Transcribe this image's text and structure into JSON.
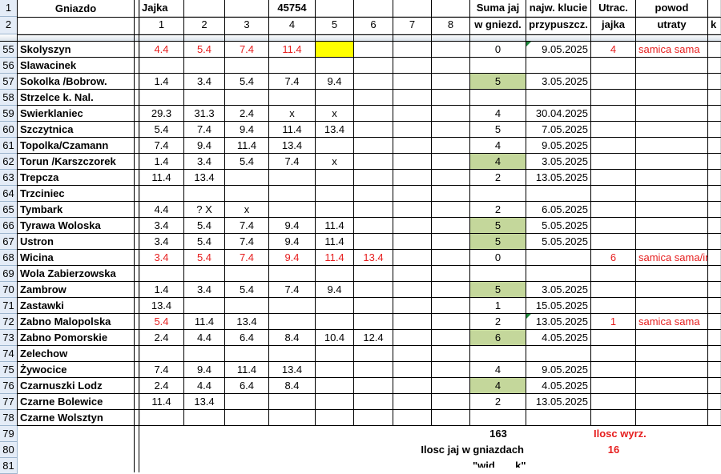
{
  "header": {
    "row1": {
      "gniazdo": "Gniazdo",
      "jajka": "Jajka",
      "date_value": "45754",
      "suma": "Suma jaj",
      "najw": "najw. klucie",
      "utrac": "Utrac.",
      "powod": "powod"
    },
    "row2": {
      "cols": [
        "1",
        "2",
        "3",
        "4",
        "5",
        "6",
        "7",
        "8"
      ],
      "suma": "w gniezd.",
      "najw": "przypuszcz.",
      "utrac": "jajka",
      "powod": "utraty",
      "trailing": "k"
    }
  },
  "rows": [
    {
      "num": "55",
      "name": "Skolyszyn",
      "eggs": [
        "4.4",
        "5.4",
        "7.4",
        "11.4",
        "",
        "",
        "",
        ""
      ],
      "sum": "0",
      "date": "9.05.2025",
      "lost": "4",
      "reason": "samica sama",
      "red": true,
      "yellow5": true,
      "tri": true
    },
    {
      "num": "56",
      "name": "Slawacinek",
      "eggs": [
        "",
        "",
        "",
        "",
        "",
        "",
        "",
        ""
      ],
      "sum": "",
      "date": "",
      "lost": "",
      "reason": ""
    },
    {
      "num": "57",
      "name": "Sokolka /Bobrow.",
      "eggs": [
        "1.4",
        "3.4",
        "5.4",
        "7.4",
        "9.4",
        "",
        "",
        ""
      ],
      "sum": "5",
      "date": "3.05.2025",
      "lost": "",
      "reason": "",
      "green": true
    },
    {
      "num": "58",
      "name": "Strzelce k. Nal.",
      "eggs": [
        "",
        "",
        "",
        "",
        "",
        "",
        "",
        ""
      ],
      "sum": "",
      "date": "",
      "lost": "",
      "reason": ""
    },
    {
      "num": "59",
      "name": "Swierklaniec",
      "eggs": [
        "29.3",
        "31.3",
        "2.4",
        "x",
        "x",
        "",
        "",
        ""
      ],
      "sum": "4",
      "date": "30.04.2025",
      "lost": "",
      "reason": ""
    },
    {
      "num": "60",
      "name": "Szczytnica",
      "eggs": [
        "5.4",
        "7.4",
        "9.4",
        "11.4",
        "13.4",
        "",
        "",
        ""
      ],
      "sum": "5",
      "date": "7.05.2025",
      "lost": "",
      "reason": ""
    },
    {
      "num": "61",
      "name": "Topolka/Czamann",
      "eggs": [
        "7.4",
        "9.4",
        "11.4",
        "13.4",
        "",
        "",
        "",
        ""
      ],
      "sum": "4",
      "date": "9.05.2025",
      "lost": "",
      "reason": ""
    },
    {
      "num": "62",
      "name": "Torun /Karszczorek",
      "eggs": [
        "1.4",
        "3.4",
        "5.4",
        "7.4",
        "x",
        "",
        "",
        ""
      ],
      "sum": "4",
      "date": "3.05.2025",
      "lost": "",
      "reason": "",
      "green": true
    },
    {
      "num": "63",
      "name": "Trepcza",
      "eggs": [
        "11.4",
        "13.4",
        "",
        "",
        "",
        "",
        "",
        ""
      ],
      "sum": "2",
      "date": "13.05.2025",
      "lost": "",
      "reason": ""
    },
    {
      "num": "64",
      "name": "Trzciniec",
      "eggs": [
        "",
        "",
        "",
        "",
        "",
        "",
        "",
        ""
      ],
      "sum": "",
      "date": "",
      "lost": "",
      "reason": ""
    },
    {
      "num": "65",
      "name": "Tymbark",
      "eggs": [
        "4.4",
        "?  X",
        "x",
        "",
        "",
        "",
        "",
        ""
      ],
      "sum": "2",
      "date": "6.05.2025",
      "lost": "",
      "reason": ""
    },
    {
      "num": "66",
      "name": "Tyrawa Woloska",
      "eggs": [
        "3.4",
        "5.4",
        "7.4",
        "9.4",
        "11.4",
        "",
        "",
        ""
      ],
      "sum": "5",
      "date": "5.05.2025",
      "lost": "",
      "reason": "",
      "green": true
    },
    {
      "num": "67",
      "name": "Ustron",
      "eggs": [
        "3.4",
        "5.4",
        "7.4",
        "9.4",
        "11.4",
        "",
        "",
        ""
      ],
      "sum": "5",
      "date": "5.05.2025",
      "lost": "",
      "reason": "",
      "green": true
    },
    {
      "num": "68",
      "name": "Wicina",
      "eggs": [
        "3.4",
        "5.4",
        "7.4",
        "9.4",
        "11.4",
        "13.4",
        "",
        ""
      ],
      "sum": "0",
      "date": "",
      "lost": "6",
      "reason": "samica sama/intr",
      "red": true
    },
    {
      "num": "69",
      "name": "Wola Zabierzowska",
      "eggs": [
        "",
        "",
        "",
        "",
        "",
        "",
        "",
        ""
      ],
      "sum": "",
      "date": "",
      "lost": "",
      "reason": ""
    },
    {
      "num": "70",
      "name": "Zambrow",
      "eggs": [
        "1.4",
        "3.4",
        "5.4",
        "7.4",
        "9.4",
        "",
        "",
        ""
      ],
      "sum": "5",
      "date": "3.05.2025",
      "lost": "",
      "reason": "",
      "green": true
    },
    {
      "num": "71",
      "name": "Zastawki",
      "eggs": [
        "13.4",
        "",
        "",
        "",
        "",
        "",
        "",
        ""
      ],
      "sum": "1",
      "date": "15.05.2025",
      "lost": "",
      "reason": ""
    },
    {
      "num": "72",
      "name": "Zabno Malopolska",
      "eggs": [
        "5.4",
        "11.4",
        "13.4",
        "",
        "",
        "",
        "",
        ""
      ],
      "sum": "2",
      "date": "13.05.2025",
      "lost": "1",
      "reason": "samica sama",
      "red1": true,
      "tri": true
    },
    {
      "num": "73",
      "name": "Zabno Pomorskie",
      "eggs": [
        "2.4",
        "4.4",
        "6.4",
        "8.4",
        "10.4",
        "12.4",
        "",
        ""
      ],
      "sum": "6",
      "date": "4.05.2025",
      "lost": "",
      "reason": "",
      "green": true
    },
    {
      "num": "74",
      "name": "Zelechow",
      "eggs": [
        "",
        "",
        "",
        "",
        "",
        "",
        "",
        ""
      ],
      "sum": "",
      "date": "",
      "lost": "",
      "reason": ""
    },
    {
      "num": "75",
      "name": "Żywocice",
      "eggs": [
        "7.4",
        "9.4",
        "11.4",
        "13.4",
        "",
        "",
        "",
        ""
      ],
      "sum": "4",
      "date": "9.05.2025",
      "lost": "",
      "reason": ""
    },
    {
      "num": "76",
      "name": "Czarnuszki Lodz",
      "eggs": [
        "2.4",
        "4.4",
        "6.4",
        "8.4",
        "",
        "",
        "",
        ""
      ],
      "sum": "4",
      "date": "4.05.2025",
      "lost": "",
      "reason": "",
      "green": true
    },
    {
      "num": "77",
      "name": "Czarne Bolewice",
      "eggs": [
        "11.4",
        "13.4",
        "",
        "",
        "",
        "",
        "",
        ""
      ],
      "sum": "2",
      "date": "13.05.2025",
      "lost": "",
      "reason": ""
    },
    {
      "num": "78",
      "name": "Czarne Wolsztyn",
      "eggs": [
        "",
        "",
        "",
        "",
        "",
        "",
        "",
        ""
      ],
      "sum": "",
      "date": "",
      "lost": "",
      "reason": ""
    }
  ],
  "footer": {
    "row79": {
      "num": "79",
      "total": "163",
      "label": "Ilosc wyrz."
    },
    "row80": {
      "num": "80",
      "label": "Ilosc jaj w gniazdach",
      "value": "16"
    },
    "row81": {
      "num": "81",
      "label": "\"wid.......k\""
    }
  },
  "colors": {
    "red": "#e61e1e",
    "green": "#c4d79b",
    "yellow": "#ffff00"
  }
}
